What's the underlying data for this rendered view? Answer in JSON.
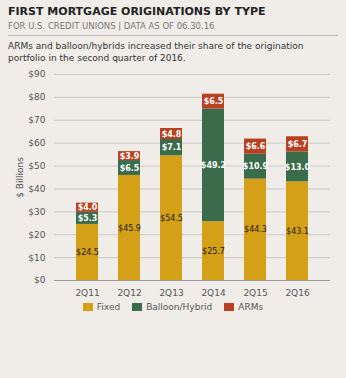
{
  "chart_data": {
    "type": "bar",
    "stacked": true,
    "title": "FIRST MORTGAGE ORIGINATIONS BY TYPE",
    "subtitle": "FOR U.S. CREDIT UNIONS  |  DATA AS OF 06.30.16",
    "description": "ARMs and balloon/hybrids increased their share of the origination\nportfolio in the second quarter of 2016.",
    "categories": [
      "2Q11",
      "2Q12",
      "2Q13",
      "2Q14",
      "2Q15",
      "2Q16"
    ],
    "series": [
      {
        "name": "Fixed",
        "color": "#D4A017",
        "values": [
          24.5,
          45.9,
          54.5,
          25.7,
          44.3,
          43.1
        ],
        "value_labels": [
          "$24.5",
          "$45.9",
          "$54.5",
          "$25.7",
          "$44.3",
          "$43.1"
        ]
      },
      {
        "name": "Balloon/Hybrid",
        "color": "#3A6B4A",
        "values": [
          5.3,
          6.5,
          7.1,
          49.2,
          10.9,
          13.0
        ],
        "value_labels": [
          "$5.3",
          "$6.5",
          "$7.1",
          "$49.2",
          "$10.9",
          "$13.0"
        ]
      },
      {
        "name": "ARMs",
        "color": "#B94020",
        "values": [
          4.0,
          3.9,
          4.8,
          6.5,
          6.6,
          6.7
        ],
        "value_labels": [
          "$4.0",
          "$3.9",
          "$4.8",
          "$6.5",
          "$6.6",
          "$6.7"
        ]
      }
    ],
    "ylabel": "$ Billions",
    "ylim": [
      0,
      90
    ],
    "yticks": [
      {
        "value": 0,
        "label": "$0"
      },
      {
        "value": 10,
        "label": "$10"
      },
      {
        "value": 20,
        "label": "$20"
      },
      {
        "value": 30,
        "label": "$30"
      },
      {
        "value": 40,
        "label": "$40"
      },
      {
        "value": 50,
        "label": "$50"
      },
      {
        "value": 60,
        "label": "$60"
      },
      {
        "value": 70,
        "label": "$70"
      },
      {
        "value": 80,
        "label": "$80"
      },
      {
        "value": 90,
        "label": "$90"
      }
    ],
    "grid": true,
    "data_labels": true,
    "legend": "bottom"
  }
}
